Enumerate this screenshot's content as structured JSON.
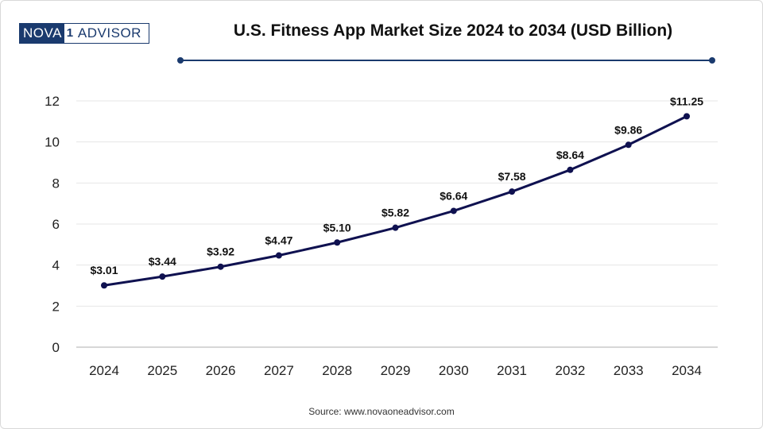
{
  "logo": {
    "part_a": "NOVA",
    "badge": "1",
    "part_b": "ADVISOR"
  },
  "source": "Source: www.novaoneadvisor.com",
  "colors": {
    "line": "#0f1150",
    "brand": "#1a3a6e",
    "grid": "#e6e6e6"
  },
  "chart_data": {
    "type": "line",
    "title": "U.S. Fitness App Market Size 2024 to 2034 (USD Billion)",
    "xlabel": "",
    "ylabel": "",
    "categories": [
      "2024",
      "2025",
      "2026",
      "2027",
      "2028",
      "2029",
      "2030",
      "2031",
      "2032",
      "2033",
      "2034"
    ],
    "series": [
      {
        "values": [
          3.01,
          3.44,
          3.92,
          4.47,
          5.1,
          5.82,
          6.64,
          7.58,
          8.64,
          9.86,
          11.25
        ],
        "labels": [
          "$3.01",
          "$3.44",
          "$3.92",
          "$4.47",
          "$5.10",
          "$5.82",
          "$6.64",
          "$7.58",
          "$8.64",
          "$9.86",
          "$11.25"
        ]
      }
    ],
    "ylim": [
      0,
      12
    ],
    "yticks": [
      "0",
      "2",
      "4",
      "6",
      "8",
      "10",
      "12"
    ],
    "grid": true,
    "legend": "none"
  }
}
